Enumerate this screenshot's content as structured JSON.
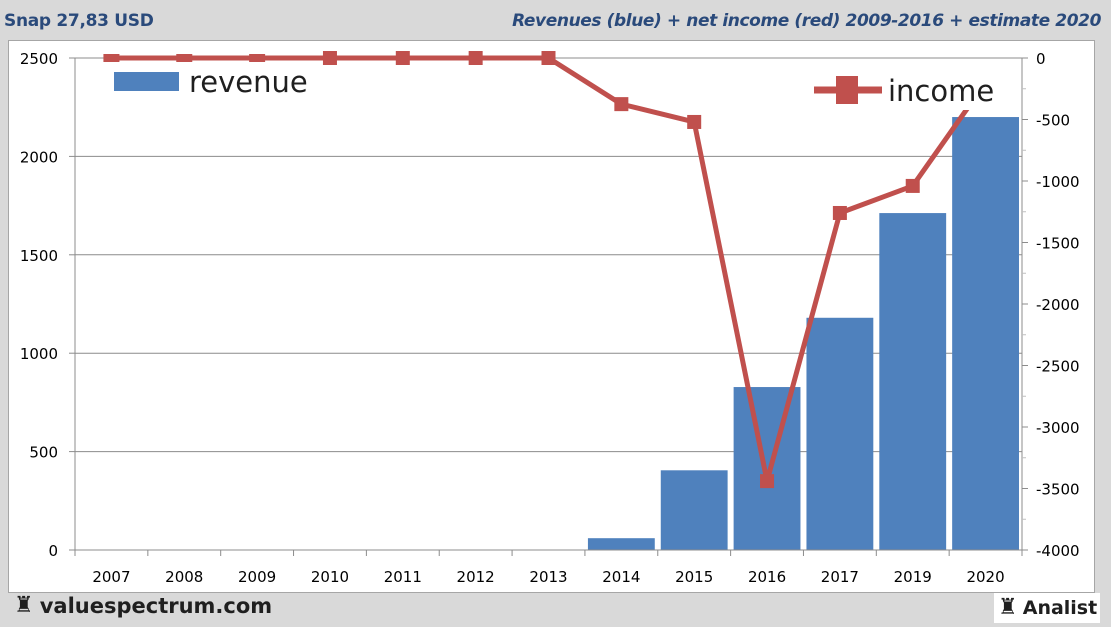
{
  "header": {
    "ticker_price": "Snap 27,83 USD",
    "subtitle": "Revenues (blue) + net income (red) 2009-2016 + estimate 2020"
  },
  "footer": {
    "site": "valuespectrum.com",
    "brand": "Analist",
    "logo_icon": "rook-chess-icon"
  },
  "colors": {
    "revenue": "#4f81bd",
    "income": "#c0504d",
    "title": "#2a4a7b",
    "grid": "#8c8c8c"
  },
  "chart_data": {
    "type": "bar+line",
    "title": "Revenues (blue) + net income (red) 2009-2016 + estimate 2020",
    "categories": [
      "2007",
      "2008",
      "2009",
      "2010",
      "2011",
      "2012",
      "2013",
      "2014",
      "2015",
      "2016",
      "2017",
      "2019",
      "2020"
    ],
    "series": [
      {
        "name": "revenue",
        "type": "bar",
        "axis": "left",
        "values": [
          0,
          0,
          0,
          0,
          0,
          0,
          0,
          60,
          405,
          828,
          1180,
          1712,
          2200
        ]
      },
      {
        "name": "income",
        "type": "line",
        "axis": "right",
        "values": [
          0,
          0,
          0,
          0,
          0,
          0,
          0,
          -375,
          -520,
          -3440,
          -1260,
          -1040,
          -200
        ]
      }
    ],
    "left_axis": {
      "ylim": [
        0,
        2500
      ],
      "ticks": [
        "0",
        "500",
        "1000",
        "1500",
        "2000",
        "2500"
      ],
      "tick_values": [
        0,
        500,
        1000,
        1500,
        2000,
        2500
      ]
    },
    "right_axis": {
      "ylim": [
        -4000,
        0
      ],
      "ticks": [
        "-4000",
        "-3500",
        "-3000",
        "-2500",
        "-2000",
        "-1500",
        "-1000",
        "-500",
        "0"
      ],
      "tick_values": [
        -4000,
        -3500,
        -3000,
        -2500,
        -2000,
        -1500,
        -1000,
        -500,
        0
      ]
    },
    "legend": [
      {
        "label": "revenue",
        "placement": "top-left"
      },
      {
        "label": "income",
        "placement": "top-right"
      }
    ],
    "grid": true
  }
}
